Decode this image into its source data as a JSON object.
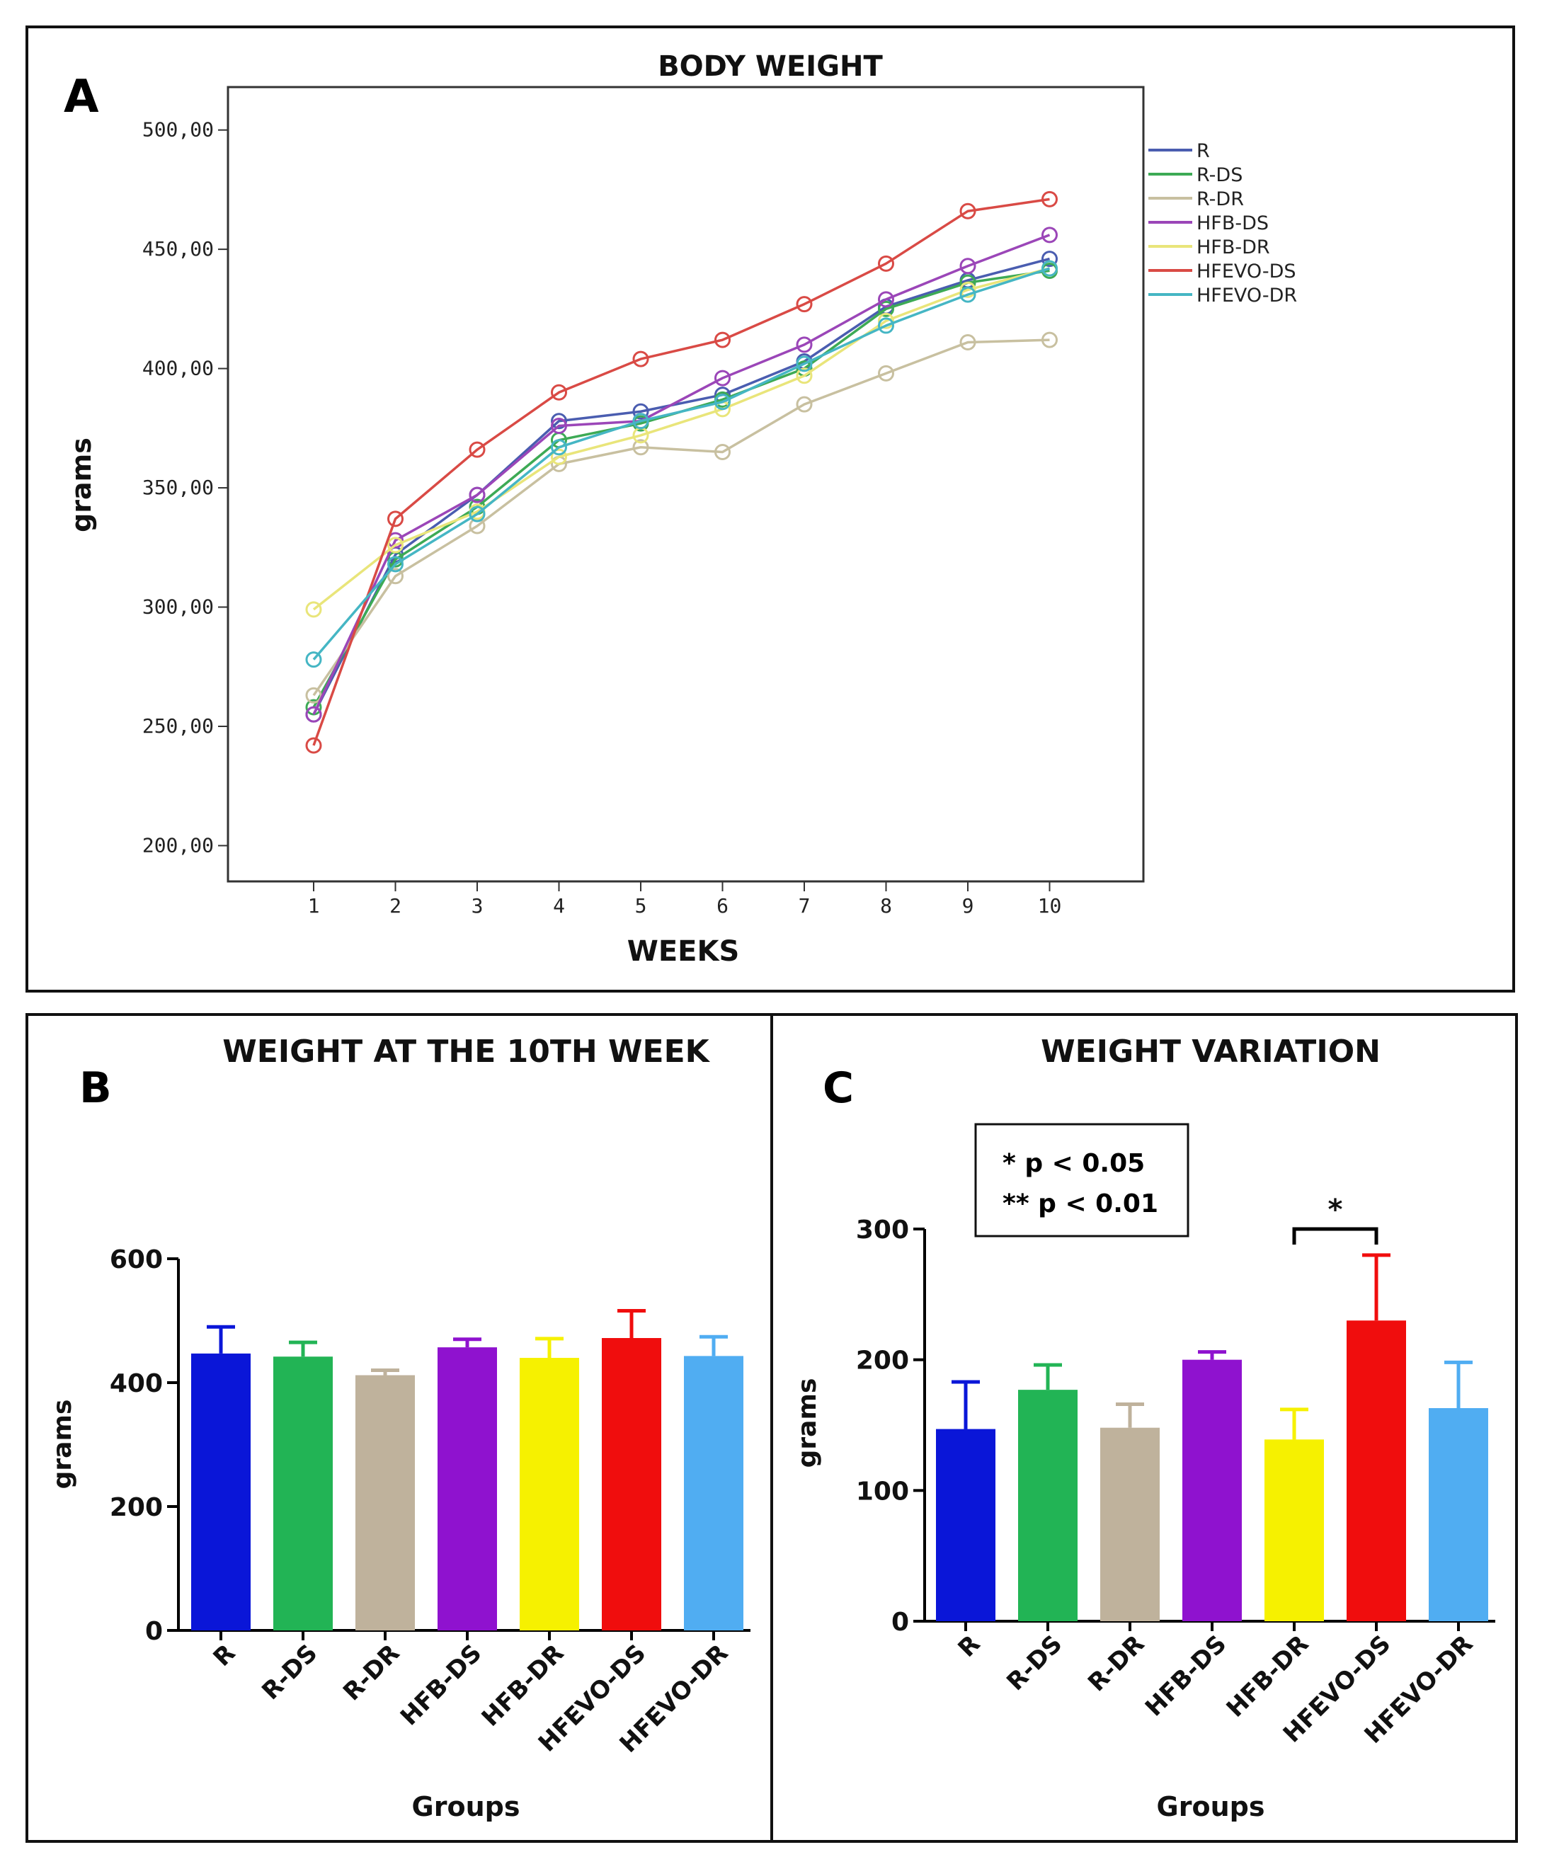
{
  "chart_data": [
    {
      "panel": "A",
      "type": "line",
      "title": "BODY WEIGHT",
      "xlabel": "WEEKS",
      "ylabel": "grams",
      "x": [
        1,
        2,
        3,
        4,
        5,
        6,
        7,
        8,
        9,
        10
      ],
      "x_tick_labels": [
        "1",
        "2",
        "3",
        "4",
        "5",
        "6",
        "7",
        "8",
        "9",
        "10"
      ],
      "ylim": [
        185,
        518
      ],
      "y_ticks": [
        200,
        250,
        300,
        350,
        400,
        450,
        500
      ],
      "y_tick_labels": [
        "200,00",
        "250,00",
        "300,00",
        "350,00",
        "400,00",
        "450,00",
        "500,00"
      ],
      "series": [
        {
          "name": "R",
          "color": "#4a5db0",
          "values": [
            255,
            322,
            347,
            378,
            382,
            389,
            403,
            426,
            437,
            446
          ]
        },
        {
          "name": "R-DS",
          "color": "#3daa55",
          "values": [
            258,
            320,
            342,
            370,
            377,
            387,
            400,
            425,
            436,
            441
          ]
        },
        {
          "name": "R-DR",
          "color": "#c8c0a0",
          "values": [
            263,
            313,
            334,
            360,
            367,
            365,
            385,
            398,
            411,
            412
          ]
        },
        {
          "name": "HFB-DS",
          "color": "#9b46b8",
          "values": [
            255,
            328,
            347,
            376,
            378,
            396,
            410,
            429,
            443,
            456
          ]
        },
        {
          "name": "HFB-DR",
          "color": "#e9e57a",
          "values": [
            299,
            326,
            340,
            363,
            372,
            383,
            397,
            420,
            433,
            442
          ]
        },
        {
          "name": "HFEVO-DS",
          "color": "#d94a45",
          "values": [
            242,
            337,
            366,
            390,
            404,
            412,
            427,
            444,
            466,
            471
          ]
        },
        {
          "name": "HFEVO-DR",
          "color": "#45b6c4",
          "values": [
            278,
            318,
            339,
            367,
            378,
            386,
            402,
            418,
            431,
            442
          ]
        }
      ]
    },
    {
      "panel": "B",
      "type": "bar",
      "title": "WEIGHT AT THE 10TH WEEK",
      "xlabel": "Groups",
      "ylabel": "grams",
      "categories": [
        "R",
        "R-DS",
        "R-DR",
        "HFB-DS",
        "HFB-DR",
        "HFEVO-DS",
        "HFEVO-DR"
      ],
      "values": [
        447,
        442,
        412,
        457,
        440,
        472,
        443
      ],
      "errors": [
        43,
        23,
        8,
        13,
        31,
        44,
        31
      ],
      "colors": [
        "#0a16d8",
        "#22b455",
        "#bfb29c",
        "#8f12cf",
        "#f6f100",
        "#f00d0d",
        "#50adf2"
      ],
      "ylim": [
        0,
        600
      ],
      "y_ticks": [
        0,
        200,
        400,
        600
      ],
      "y_tick_labels": [
        "0",
        "200",
        "400",
        "600"
      ]
    },
    {
      "panel": "C",
      "type": "bar",
      "title": "WEIGHT VARIATION",
      "xlabel": "Groups",
      "ylabel": "grams",
      "categories": [
        "R",
        "R-DS",
        "R-DR",
        "HFB-DS",
        "HFB-DR",
        "HFEVO-DS",
        "HFEVO-DR"
      ],
      "values": [
        147,
        177,
        148,
        200,
        139,
        230,
        163
      ],
      "errors": [
        36,
        19,
        18,
        6,
        23,
        50,
        35
      ],
      "colors": [
        "#0a16d8",
        "#22b455",
        "#bfb29c",
        "#8f12cf",
        "#f6f100",
        "#f00d0d",
        "#50adf2"
      ],
      "ylim": [
        0,
        300
      ],
      "y_ticks": [
        0,
        100,
        200,
        300
      ],
      "y_tick_labels": [
        "0",
        "100",
        "200",
        "300"
      ],
      "significance": {
        "between": [
          "HFB-DR",
          "HFEVO-DS"
        ],
        "mark": "*"
      },
      "legend_lines": [
        "* p < 0.05",
        "** p < 0.01"
      ]
    }
  ]
}
